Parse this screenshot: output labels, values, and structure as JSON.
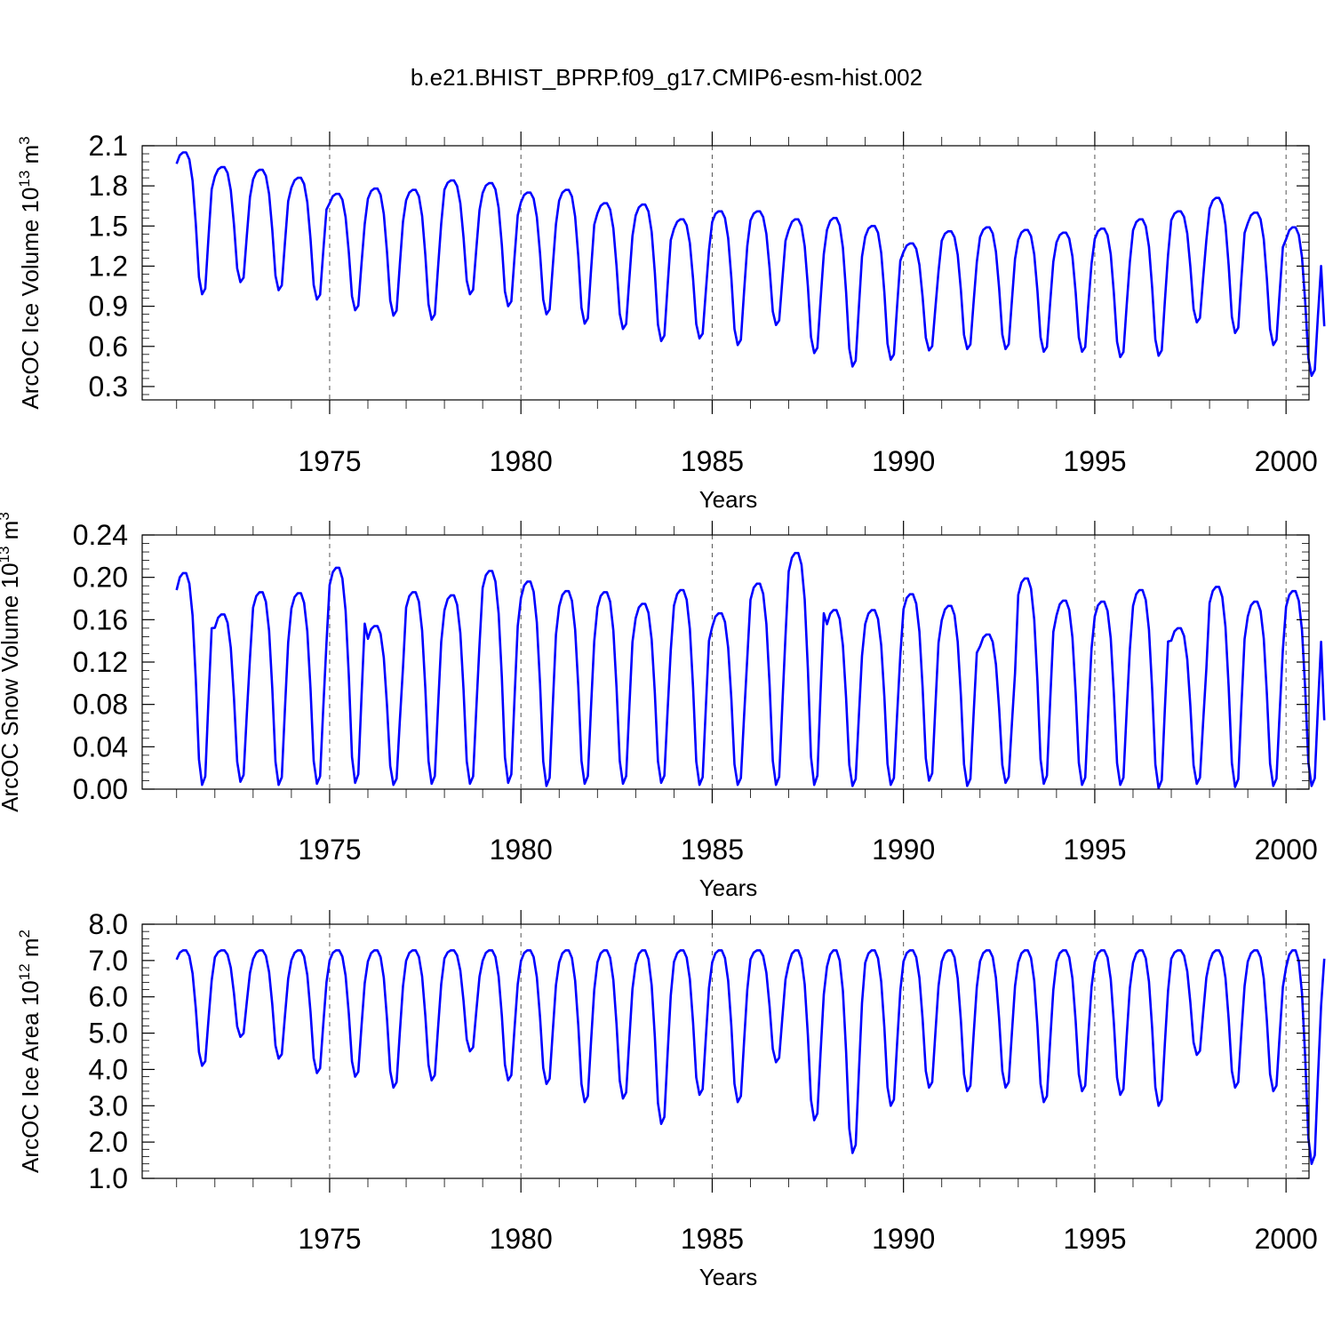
{
  "figure_title": "b.e21.BHIST_BPRP.f09_g17.CMIP6-esm-hist.002",
  "colors": {
    "series": "#0000ff",
    "axes": "#000000"
  },
  "chart_data": [
    {
      "type": "line",
      "id": "ice-volume",
      "title": "b.e21.BHIST_BPRP.f09_g17.CMIP6-esm-hist.002",
      "xlabel": "Years",
      "ylabel": "ArcOC Ice Volume 10",
      "ylabel_exp": "13",
      "ylabel_unit": " m",
      "ylabel_unit_exp": "3",
      "xlim": [
        1970.1,
        2000.6
      ],
      "ylim": [
        0.2,
        2.1
      ],
      "yticks": [
        0.3,
        0.6,
        0.9,
        1.2,
        1.5,
        1.8,
        2.1
      ],
      "ytick_labels": [
        "0.3",
        "0.6",
        "0.9",
        "1.2",
        "1.5",
        "1.8",
        "2.1"
      ],
      "xticks": [
        1975,
        1980,
        1985,
        1990,
        1995,
        2000
      ],
      "xtick_labels": [
        "1975",
        "1980",
        "1985",
        "1990",
        "1995",
        "2000"
      ],
      "grid": "vertical dashed at labeled years",
      "series": [
        {
          "name": "Ice Volume",
          "seasonal": true,
          "year_start": 1970,
          "n_years": 30,
          "final_value": 0.75,
          "peaks": [
            2.05,
            1.94,
            1.92,
            1.86,
            1.74,
            1.78,
            1.77,
            1.84,
            1.82,
            1.75,
            1.77,
            1.67,
            1.66,
            1.55,
            1.61,
            1.61,
            1.55,
            1.56,
            1.5,
            1.37,
            1.46,
            1.49,
            1.47,
            1.45,
            1.48,
            1.55,
            1.61,
            1.71,
            1.6,
            1.49
          ],
          "troughs": [
            0.99,
            1.08,
            1.02,
            0.95,
            0.87,
            0.83,
            0.8,
            0.99,
            0.9,
            0.84,
            0.77,
            0.73,
            0.64,
            0.66,
            0.61,
            0.76,
            0.55,
            0.45,
            0.5,
            0.57,
            0.58,
            0.58,
            0.56,
            0.56,
            0.52,
            0.53,
            0.78,
            0.7,
            0.61,
            0.38
          ]
        }
      ]
    },
    {
      "type": "line",
      "id": "snow-volume",
      "xlabel": "Years",
      "ylabel": "ArcOC Snow Volume 10",
      "ylabel_exp": "13",
      "ylabel_unit": " m",
      "ylabel_unit_exp": "3",
      "xlim": [
        1970.1,
        2000.6
      ],
      "ylim": [
        0.0,
        0.24
      ],
      "yticks": [
        0.0,
        0.04,
        0.08,
        0.12,
        0.16,
        0.2,
        0.24
      ],
      "ytick_labels": [
        "0.00",
        "0.04",
        "0.08",
        "0.12",
        "0.16",
        "0.20",
        "0.24"
      ],
      "xticks": [
        1975,
        1980,
        1985,
        1990,
        1995,
        2000
      ],
      "xtick_labels": [
        "1975",
        "1980",
        "1985",
        "1990",
        "1995",
        "2000"
      ],
      "grid": "vertical dashed at labeled years",
      "series": [
        {
          "name": "Snow Volume",
          "seasonal": true,
          "year_start": 1970,
          "n_years": 30,
          "final_value": 0.065,
          "peaks": [
            0.204,
            0.165,
            0.186,
            0.185,
            0.209,
            0.154,
            0.186,
            0.183,
            0.206,
            0.196,
            0.187,
            0.186,
            0.175,
            0.188,
            0.166,
            0.194,
            0.223,
            0.169,
            0.169,
            0.184,
            0.173,
            0.146,
            0.199,
            0.178,
            0.177,
            0.188,
            0.152,
            0.191,
            0.177,
            0.187
          ],
          "troughs": [
            0.004,
            0.007,
            0.004,
            0.005,
            0.006,
            0.004,
            0.005,
            0.005,
            0.006,
            0.003,
            0.005,
            0.005,
            0.006,
            0.004,
            0.004,
            0.004,
            0.004,
            0.003,
            0.004,
            0.008,
            0.003,
            0.006,
            0.005,
            0.004,
            0.004,
            0.001,
            0.005,
            0.002,
            0.003,
            0.003
          ]
        }
      ]
    },
    {
      "type": "line",
      "id": "ice-area",
      "xlabel": "Years",
      "ylabel": "ArcOC Ice Area 10",
      "ylabel_exp": "12",
      "ylabel_unit": " m",
      "ylabel_unit_exp": "2",
      "xlim": [
        1970.1,
        2000.6
      ],
      "ylim": [
        1.0,
        8.0
      ],
      "yticks": [
        1.0,
        2.0,
        3.0,
        4.0,
        5.0,
        6.0,
        7.0,
        8.0
      ],
      "ytick_labels": [
        "1.0",
        "2.0",
        "3.0",
        "4.0",
        "5.0",
        "6.0",
        "7.0",
        "8.0"
      ],
      "xticks": [
        1975,
        1980,
        1985,
        1990,
        1995,
        2000
      ],
      "xtick_labels": [
        "1975",
        "1980",
        "1985",
        "1990",
        "1995",
        "2000"
      ],
      "grid": "vertical dashed at labeled years",
      "series": [
        {
          "name": "Ice Area",
          "seasonal": true,
          "year_start": 1970,
          "n_years": 30,
          "final_value": 7.05,
          "peaks": [
            7.28,
            7.28,
            7.28,
            7.28,
            7.28,
            7.28,
            7.28,
            7.28,
            7.28,
            7.28,
            7.28,
            7.28,
            7.28,
            7.28,
            7.28,
            7.28,
            7.28,
            7.28,
            7.28,
            7.28,
            7.28,
            7.28,
            7.28,
            7.28,
            7.28,
            7.28,
            7.28,
            7.28,
            7.28,
            7.28
          ],
          "troughs": [
            4.1,
            4.9,
            4.3,
            3.9,
            3.8,
            3.5,
            3.7,
            4.5,
            3.7,
            3.6,
            3.1,
            3.2,
            2.5,
            3.3,
            3.1,
            4.2,
            2.6,
            1.7,
            3.0,
            3.5,
            3.4,
            3.5,
            3.1,
            3.4,
            3.3,
            3.0,
            4.4,
            3.5,
            3.4,
            1.4
          ]
        }
      ]
    }
  ]
}
